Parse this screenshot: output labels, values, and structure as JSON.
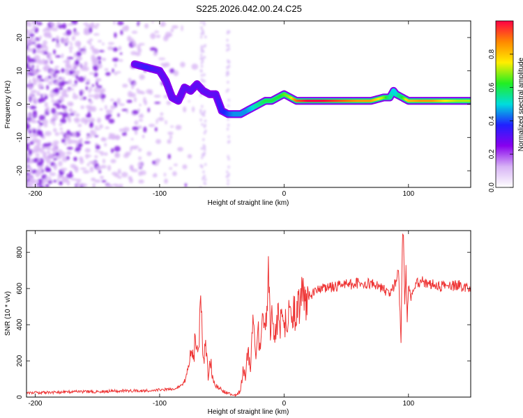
{
  "title": "S225.2026.042.00.24.C25",
  "colors": {
    "signal": "#ee3333",
    "frame": "#000000"
  },
  "chart_data": [
    {
      "type": "heatmap",
      "xlabel": "Height of straight line (km)",
      "ylabel": "Frequency (Hz)",
      "xlim": [
        -207,
        150
      ],
      "ylim": [
        -25,
        25
      ],
      "xticks": [
        -200,
        -100,
        0,
        100
      ],
      "yticks": [
        -20,
        -10,
        0,
        10,
        20
      ],
      "colorbar": {
        "label": "Normalized spectral amplitude",
        "range": [
          0,
          1
        ],
        "ticks": [
          0.0,
          0.2,
          0.4,
          0.6,
          0.8
        ],
        "tick_labels": [
          "0.0",
          "0.2",
          "0.4",
          "0.6",
          "0.8"
        ],
        "colormap": [
          "#ffffff",
          "#d7b3f5",
          "#8800ee",
          "#2020ff",
          "#00dddd",
          "#22ee22",
          "#ffee00",
          "#ff8800",
          "#ff0044"
        ]
      },
      "ridge": {
        "x": [
          -120,
          -110,
          -100,
          -95,
          -90,
          -85,
          -80,
          -75,
          -70,
          -65,
          -60,
          -55,
          -50,
          -45,
          -40,
          -35,
          -30,
          -25,
          -20,
          -15,
          -10,
          -5,
          0,
          5,
          10,
          20,
          30,
          40,
          50,
          60,
          70,
          80,
          85,
          88,
          90,
          95,
          100,
          110,
          120,
          130,
          140,
          150
        ],
        "y": [
          12,
          11,
          10,
          7,
          2,
          1,
          5,
          4,
          6,
          4,
          3,
          3,
          -2,
          -3,
          -3,
          -3,
          -2,
          -1,
          0,
          1,
          1,
          2,
          3,
          2,
          1,
          1,
          1,
          1,
          1,
          1,
          1,
          2,
          2,
          4,
          3,
          2,
          1,
          1,
          1,
          1,
          1,
          1
        ],
        "amplitude": [
          0.3,
          0.35,
          0.3,
          0.3,
          0.3,
          0.3,
          0.3,
          0.3,
          0.3,
          0.3,
          0.3,
          0.3,
          0.35,
          0.4,
          0.45,
          0.45,
          0.45,
          0.5,
          0.55,
          0.6,
          0.6,
          0.6,
          0.65,
          0.7,
          0.9,
          1.0,
          1.0,
          0.95,
          0.9,
          0.85,
          0.85,
          0.7,
          0.55,
          0.5,
          0.5,
          0.6,
          0.8,
          0.85,
          0.85,
          0.75,
          0.7,
          0.7
        ]
      }
    },
    {
      "type": "line",
      "xlabel": "Height of straight line (km)",
      "ylabel": "SNR (10 * v/v)",
      "xlim": [
        -207,
        150
      ],
      "ylim": [
        0,
        920
      ],
      "xticks": [
        -200,
        -100,
        0,
        100
      ],
      "yticks": [
        0,
        200,
        400,
        600,
        800
      ],
      "series": [
        {
          "name": "SNR",
          "x": [
            -207,
            -190,
            -170,
            -150,
            -130,
            -110,
            -100,
            -90,
            -85,
            -80,
            -77,
            -75,
            -73,
            -71,
            -69,
            -67,
            -65,
            -63,
            -61,
            -59,
            -57,
            -55,
            -50,
            -45,
            -40,
            -35,
            -33,
            -31,
            -29,
            -27,
            -25,
            -23,
            -21,
            -19,
            -17,
            -15,
            -13,
            -11,
            -9,
            -7,
            -5,
            0,
            5,
            10,
            15,
            20,
            25,
            30,
            40,
            50,
            60,
            70,
            80,
            85,
            90,
            92,
            94,
            95,
            96,
            97,
            98,
            99,
            100,
            102,
            105,
            110,
            120,
            130,
            140,
            150
          ],
          "y": [
            25,
            25,
            30,
            30,
            35,
            35,
            40,
            45,
            55,
            80,
            150,
            300,
            200,
            350,
            250,
            520,
            180,
            300,
            120,
            200,
            90,
            60,
            40,
            20,
            10,
            30,
            150,
            120,
            250,
            180,
            400,
            250,
            380,
            220,
            450,
            300,
            700,
            350,
            450,
            380,
            420,
            400,
            450,
            500,
            540,
            560,
            580,
            600,
            610,
            620,
            630,
            625,
            600,
            560,
            640,
            700,
            300,
            850,
            920,
            500,
            720,
            400,
            620,
            560,
            620,
            640,
            620,
            610,
            620,
            600
          ]
        }
      ]
    }
  ]
}
